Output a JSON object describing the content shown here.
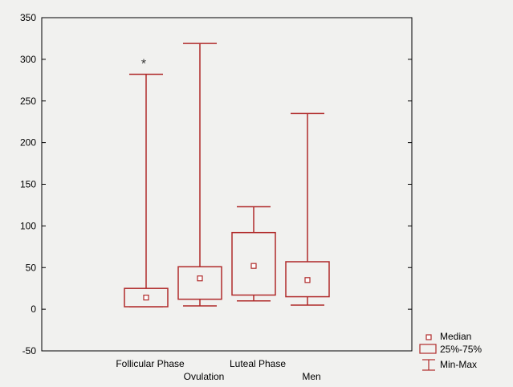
{
  "chart_data": {
    "type": "box",
    "title": "",
    "xlabel": "",
    "ylabel": "",
    "ylim": [
      -50,
      350
    ],
    "y_ticks": [
      -50,
      0,
      50,
      100,
      150,
      200,
      250,
      300,
      350
    ],
    "grid": false,
    "categories": [
      "Follicular Phase",
      "Ovulation",
      "Luteal Phase",
      "Men"
    ],
    "boxes": [
      {
        "category": "Follicular Phase",
        "min": 3,
        "q1": 3,
        "median": 14,
        "q3": 25,
        "max": 282,
        "annotation": "*"
      },
      {
        "category": "Ovulation",
        "min": 4,
        "q1": 12,
        "median": 37,
        "q3": 51,
        "max": 319,
        "annotation": ""
      },
      {
        "category": "Luteal Phase",
        "min": 10,
        "q1": 17,
        "median": 52,
        "q3": 92,
        "max": 123,
        "annotation": ""
      },
      {
        "category": "Men",
        "min": 5,
        "q1": 15,
        "median": 35,
        "q3": 57,
        "max": 235,
        "annotation": ""
      }
    ],
    "legend": {
      "placement": "bottom-right",
      "items": [
        "Median",
        "25%-75%",
        "Min-Max"
      ]
    },
    "colors": {
      "series": "#b02a2a",
      "axis": "#000000",
      "background": "#f1f1ef"
    }
  }
}
